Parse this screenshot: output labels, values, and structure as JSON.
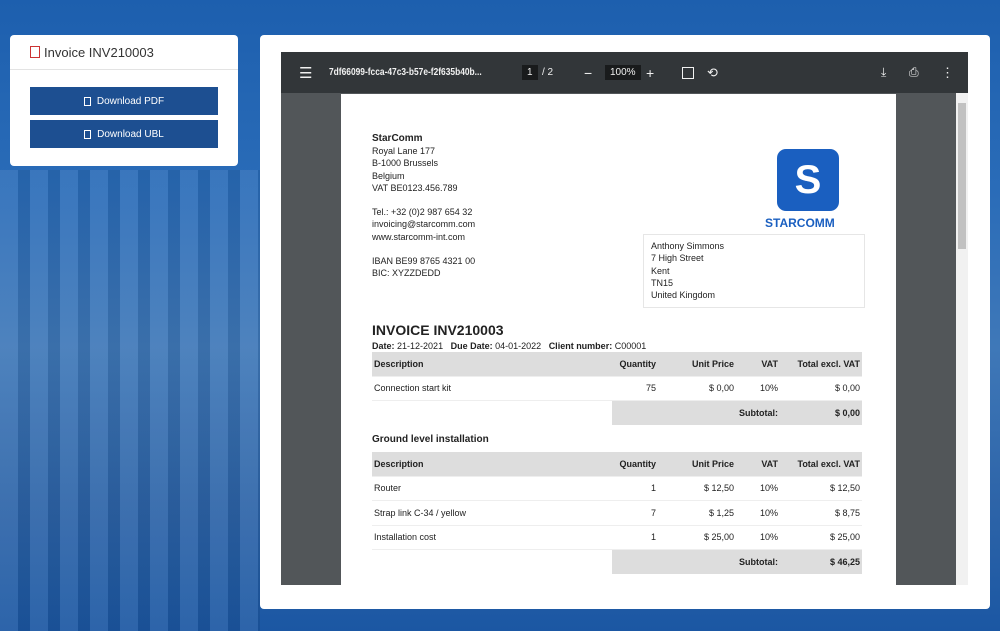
{
  "sidebar": {
    "title": "Invoice INV210003",
    "download_pdf": "Download PDF",
    "download_ubl": "Download UBL"
  },
  "viewer": {
    "filename": "7df66099-fcca-47c3-b57e-f2f635b40b...",
    "page": "1",
    "page_total": "/ 2",
    "zoom": "100%"
  },
  "invoice": {
    "company": "StarComm",
    "company_lines": [
      "Royal Lane 177",
      "B-1000 Brussels",
      "Belgium",
      "VAT BE0123.456.789"
    ],
    "contact_lines": [
      "Tel.: +32 (0)2 987 654 32",
      "invoicing@starcomm.com",
      "www.starcomm-int.com"
    ],
    "bank_lines": [
      "IBAN BE99 8765 4321 00",
      "BIC: XYZZDEDD"
    ],
    "logo_text": "STARCOMM",
    "logo_color": "#1a5fc0",
    "recipient": [
      "Anthony Simmons",
      "7 High Street",
      "Kent",
      "TN15",
      "United Kingdom"
    ],
    "title": "INVOICE INV210003",
    "meta": {
      "date_label": "Date:",
      "date": "21-12-2021",
      "due_label": "Due Date:",
      "due": "04-01-2022",
      "client_label": "Client number:",
      "client": "C00001"
    },
    "headers": [
      "Description",
      "Quantity",
      "Unit Price",
      "VAT",
      "Total excl. VAT"
    ],
    "subtotal_label": "Subtotal:",
    "sections": [
      {
        "title": "",
        "rows": [
          [
            "Connection start kit",
            "75",
            "$ 0,00",
            "10%",
            "$ 0,00"
          ]
        ],
        "subtotal": "$ 0,00"
      },
      {
        "title": "Ground level installation",
        "rows": [
          [
            "Router",
            "1",
            "$ 12,50",
            "10%",
            "$ 12,50"
          ],
          [
            "Strap link C-34 / yellow",
            "7",
            "$ 1,25",
            "10%",
            "$ 8,75"
          ],
          [
            "Installation cost",
            "1",
            "$ 25,00",
            "10%",
            "$ 25,00"
          ]
        ],
        "subtotal": "$ 46,25"
      }
    ]
  }
}
